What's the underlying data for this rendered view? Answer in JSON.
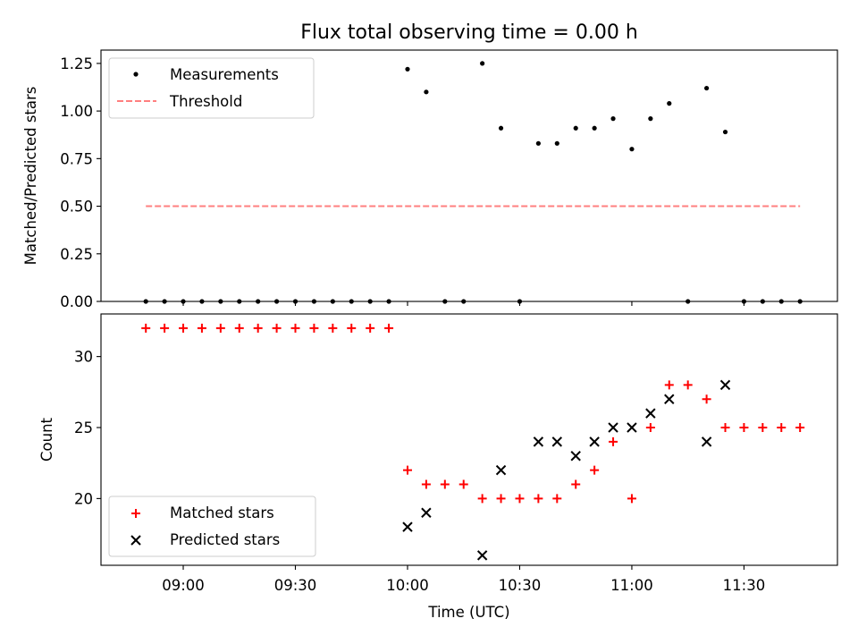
{
  "chart_data": [
    {
      "type": "scatter",
      "title": "Flux total observing time = 0.00 h",
      "xlabel": "",
      "ylabel": "Matched/Predicted stars",
      "ylim": [
        0,
        1.32
      ],
      "yticks": [
        "0.00",
        "0.25",
        "0.50",
        "0.75",
        "1.00",
        "1.25"
      ],
      "x_unit": "time of day (UTC)",
      "xlim": [
        "08:38",
        "11:55"
      ],
      "grid": false,
      "legend_position": "upper-left",
      "series": [
        {
          "name": "Measurements",
          "marker": "dot",
          "color": "#000000",
          "x": [
            "08:50",
            "08:55",
            "09:00",
            "09:05",
            "09:10",
            "09:15",
            "09:20",
            "09:25",
            "09:30",
            "09:35",
            "09:40",
            "09:45",
            "09:50",
            "09:55",
            "10:00",
            "10:05",
            "10:10",
            "10:15",
            "10:20",
            "10:25",
            "10:30",
            "10:35",
            "10:40",
            "10:45",
            "10:50",
            "10:55",
            "11:00",
            "11:05",
            "11:10",
            "11:15",
            "11:20",
            "11:25",
            "11:30",
            "11:35",
            "11:40",
            "11:45"
          ],
          "y": [
            0,
            0,
            0,
            0,
            0,
            0,
            0,
            0,
            0,
            0,
            0,
            0,
            0,
            0,
            1.22,
            1.1,
            0,
            0,
            1.25,
            0.91,
            0,
            0.83,
            0.83,
            0.91,
            0.91,
            0.96,
            0.8,
            0.96,
            1.04,
            0,
            1.12,
            0.89,
            0,
            0,
            0,
            0
          ]
        },
        {
          "name": "Threshold",
          "style": "dashed",
          "color": "#ff7f7f",
          "x": [
            "08:50",
            "11:45"
          ],
          "y": [
            0.5,
            0.5
          ]
        }
      ]
    },
    {
      "type": "scatter",
      "title": "",
      "xlabel": "Time (UTC)",
      "ylabel": "Count",
      "ylim": [
        15.3,
        33.0
      ],
      "yticks": [
        "20",
        "25",
        "30"
      ],
      "xticks": [
        "09:00",
        "09:30",
        "10:00",
        "10:30",
        "11:00",
        "11:30"
      ],
      "x_unit": "time of day (UTC)",
      "xlim": [
        "08:38",
        "11:55"
      ],
      "grid": false,
      "legend_position": "lower-left",
      "series": [
        {
          "name": "Matched stars",
          "marker": "plus",
          "color": "#ff0000",
          "x": [
            "08:50",
            "08:55",
            "09:00",
            "09:05",
            "09:10",
            "09:15",
            "09:20",
            "09:25",
            "09:30",
            "09:35",
            "09:40",
            "09:45",
            "09:50",
            "09:55",
            "10:00",
            "10:05",
            "10:10",
            "10:15",
            "10:20",
            "10:25",
            "10:30",
            "10:35",
            "10:40",
            "10:45",
            "10:50",
            "10:55",
            "11:00",
            "11:05",
            "11:10",
            "11:15",
            "11:20",
            "11:25",
            "11:30",
            "11:35",
            "11:40",
            "11:45"
          ],
          "y": [
            32,
            32,
            32,
            32,
            32,
            32,
            32,
            32,
            32,
            32,
            32,
            32,
            32,
            32,
            22,
            21,
            21,
            21,
            20,
            20,
            20,
            20,
            20,
            21,
            22,
            24,
            20,
            25,
            28,
            28,
            27,
            25,
            25,
            25,
            25,
            25
          ]
        },
        {
          "name": "Predicted stars",
          "marker": "x",
          "color": "#000000",
          "x": [
            "10:00",
            "10:05",
            "10:20",
            "10:25",
            "10:35",
            "10:40",
            "10:45",
            "10:50",
            "10:55",
            "11:00",
            "11:05",
            "11:10",
            "11:20",
            "11:25"
          ],
          "y": [
            18,
            19,
            16,
            22,
            24,
            24,
            23,
            24,
            25,
            25,
            26,
            27,
            24,
            28
          ]
        }
      ]
    }
  ]
}
